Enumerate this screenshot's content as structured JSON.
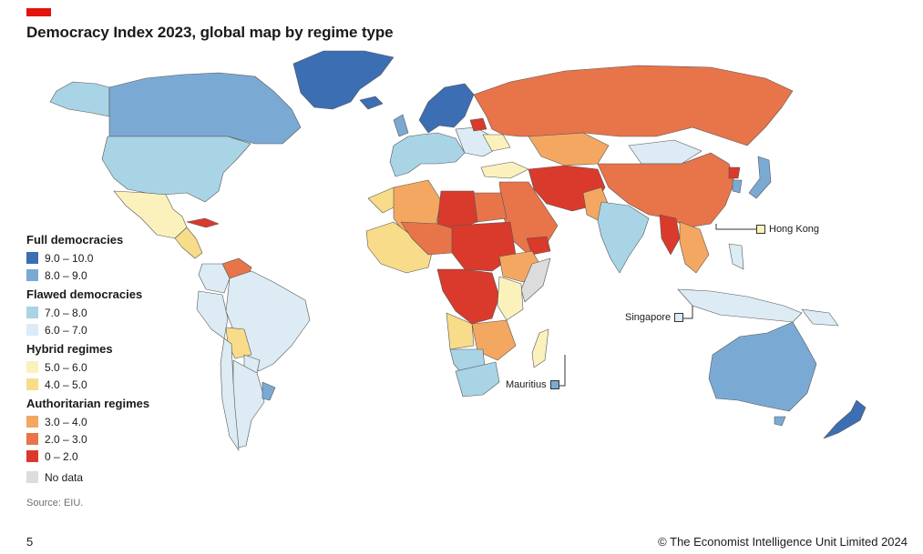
{
  "title": "Democracy Index 2023, global map by regime type",
  "legend": {
    "groups": [
      {
        "heading": "Full democracies",
        "items": [
          {
            "label": "9.0 – 10.0",
            "color": "#3c6eb4"
          },
          {
            "label": "8.0 – 9.0",
            "color": "#7aaad4"
          }
        ]
      },
      {
        "heading": "Flawed democracies",
        "items": [
          {
            "label": "7.0 – 8.0",
            "color": "#a9d4e6"
          },
          {
            "label": "6.0 – 7.0",
            "color": "#dcebf4"
          }
        ]
      },
      {
        "heading": "Hybrid regimes",
        "items": [
          {
            "label": "5.0 – 6.0",
            "color": "#fbf1bd"
          },
          {
            "label": "4.0 – 5.0",
            "color": "#f8dc8a"
          }
        ]
      },
      {
        "heading": "Authoritarian regimes",
        "items": [
          {
            "label": "3.0 – 4.0",
            "color": "#f4a761"
          },
          {
            "label": "2.0 – 3.0",
            "color": "#e8744a"
          },
          {
            "label": "0 – 2.0",
            "color": "#d93a2b"
          }
        ]
      }
    ],
    "no_data": {
      "label": "No data",
      "color": "#dcdcdc"
    }
  },
  "callouts": {
    "hong_kong": "Hong Kong",
    "singapore": "Singapore",
    "mauritius": "Mauritius"
  },
  "source": "Source: EIU.",
  "page_number": "5",
  "copyright": "© The Economist Intelligence Unit Limited 2024"
}
